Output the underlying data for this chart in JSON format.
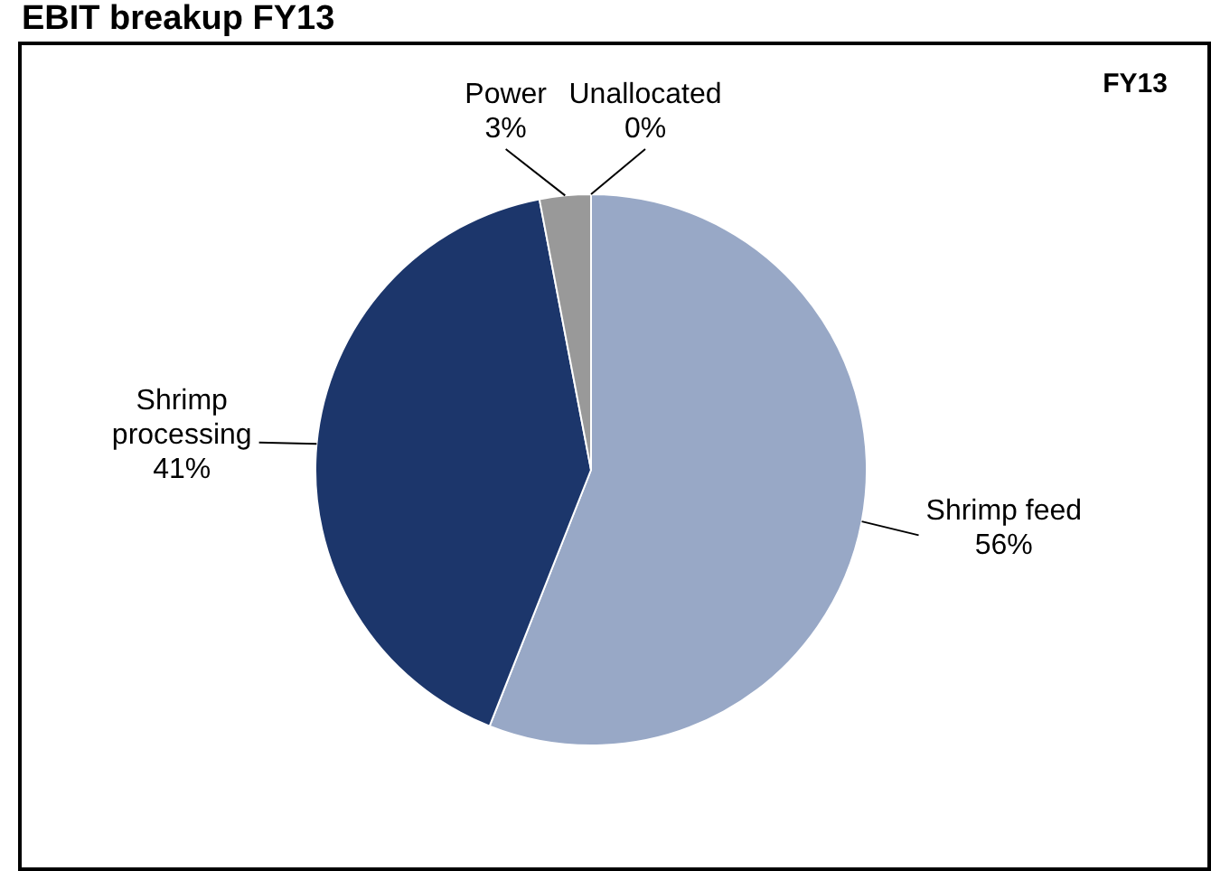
{
  "chart_data": {
    "type": "pie",
    "title": "EBIT breakup FY13",
    "subtitle": "FY13",
    "categories": [
      "Shrimp feed",
      "Shrimp processing",
      "Power",
      "Unallocated"
    ],
    "values": [
      56,
      41,
      3,
      0
    ],
    "colors": [
      "#98a8c6",
      "#1c366b",
      "#999999",
      "#cccccc"
    ],
    "value_labels": [
      "56%",
      "41%",
      "3%",
      "0%"
    ],
    "legend": false
  }
}
